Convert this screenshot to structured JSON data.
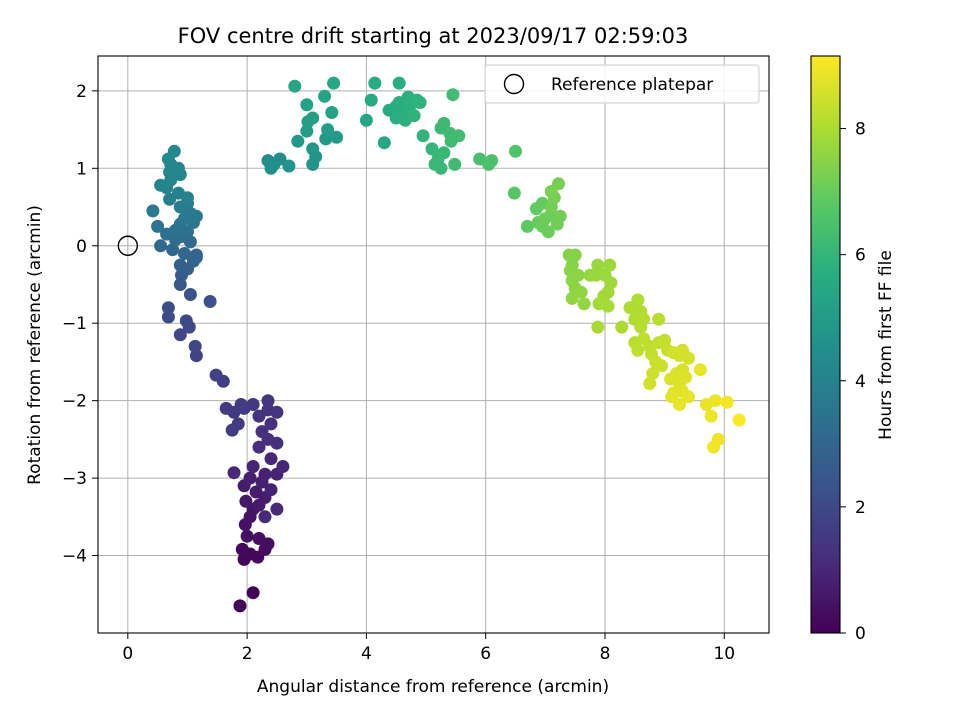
{
  "chart_data": {
    "type": "scatter",
    "title": "FOV centre drift starting at 2023/09/17 02:59:03",
    "xlabel": "Angular distance from reference (arcmin)",
    "ylabel": "Rotation from reference (arcmin)",
    "xlim": [
      -0.5,
      10.75
    ],
    "ylim": [
      -5.0,
      2.45
    ],
    "xticks": [
      "0",
      "2",
      "4",
      "6",
      "8",
      "10"
    ],
    "xtick_values": [
      0,
      2,
      4,
      6,
      8,
      10
    ],
    "yticks": [
      "2",
      "1",
      "0",
      "−1",
      "−2",
      "−3",
      "−4"
    ],
    "ytick_values": [
      2,
      1,
      0,
      -1,
      -2,
      -3,
      -4
    ],
    "grid": true,
    "legend": {
      "label": "Reference platepar",
      "location": "top-right",
      "marker": "open-circle"
    },
    "reference_point": {
      "x": 0,
      "y": 0
    },
    "colormap": "viridis",
    "colorbar": {
      "label": "Hours from first FF file",
      "range": [
        0,
        9.15
      ],
      "ticks": [
        "0",
        "2",
        "4",
        "6",
        "8"
      ],
      "tick_values": [
        0,
        2,
        4,
        6,
        8
      ]
    },
    "points": [
      {
        "x": 1.88,
        "y": -4.65,
        "t": 0.02
      },
      {
        "x": 2.1,
        "y": -4.48,
        "t": 0.05
      },
      {
        "x": 1.95,
        "y": -4.05,
        "t": 0.1
      },
      {
        "x": 2.05,
        "y": -3.98,
        "t": 0.15
      },
      {
        "x": 1.92,
        "y": -3.92,
        "t": 0.2
      },
      {
        "x": 2.18,
        "y": -4.02,
        "t": 0.22
      },
      {
        "x": 2.3,
        "y": -3.92,
        "t": 0.28
      },
      {
        "x": 2.35,
        "y": -3.85,
        "t": 0.32
      },
      {
        "x": 2.2,
        "y": -3.78,
        "t": 0.35
      },
      {
        "x": 2.0,
        "y": -3.75,
        "t": 0.4
      },
      {
        "x": 1.97,
        "y": -3.6,
        "t": 0.45
      },
      {
        "x": 2.05,
        "y": -3.5,
        "t": 0.5
      },
      {
        "x": 2.1,
        "y": -3.4,
        "t": 0.55
      },
      {
        "x": 1.98,
        "y": -3.3,
        "t": 0.6
      },
      {
        "x": 2.2,
        "y": -3.35,
        "t": 0.62
      },
      {
        "x": 2.3,
        "y": -3.25,
        "t": 0.68
      },
      {
        "x": 1.95,
        "y": -3.1,
        "t": 0.7
      },
      {
        "x": 2.15,
        "y": -3.18,
        "t": 0.72
      },
      {
        "x": 2.05,
        "y": -3.0,
        "t": 0.78
      },
      {
        "x": 2.25,
        "y": -3.05,
        "t": 0.8
      },
      {
        "x": 2.4,
        "y": -3.15,
        "t": 0.85
      },
      {
        "x": 2.3,
        "y": -2.95,
        "t": 0.88
      },
      {
        "x": 2.5,
        "y": -2.95,
        "t": 0.9
      },
      {
        "x": 2.1,
        "y": -2.85,
        "t": 0.95
      },
      {
        "x": 2.4,
        "y": -2.75,
        "t": 1.0
      },
      {
        "x": 2.6,
        "y": -2.85,
        "t": 1.02
      },
      {
        "x": 1.78,
        "y": -2.93,
        "t": 1.05
      },
      {
        "x": 2.5,
        "y": -3.4,
        "t": 1.08
      },
      {
        "x": 2.3,
        "y": -3.5,
        "t": 1.1
      },
      {
        "x": 2.2,
        "y": -2.6,
        "t": 1.15
      },
      {
        "x": 2.35,
        "y": -2.5,
        "t": 1.2
      },
      {
        "x": 2.5,
        "y": -2.55,
        "t": 1.22
      },
      {
        "x": 2.25,
        "y": -2.4,
        "t": 1.25
      },
      {
        "x": 2.4,
        "y": -2.3,
        "t": 1.28
      },
      {
        "x": 2.2,
        "y": -2.2,
        "t": 1.32
      },
      {
        "x": 2.35,
        "y": -2.12,
        "t": 1.35
      },
      {
        "x": 2.5,
        "y": -2.15,
        "t": 1.38
      },
      {
        "x": 2.35,
        "y": -2.0,
        "t": 1.42
      },
      {
        "x": 2.1,
        "y": -2.05,
        "t": 1.45
      },
      {
        "x": 1.95,
        "y": -2.1,
        "t": 1.5
      },
      {
        "x": 1.78,
        "y": -2.15,
        "t": 1.52
      },
      {
        "x": 1.65,
        "y": -2.1,
        "t": 1.55
      },
      {
        "x": 1.85,
        "y": -2.3,
        "t": 1.58
      },
      {
        "x": 1.75,
        "y": -2.38,
        "t": 1.6
      },
      {
        "x": 1.9,
        "y": -2.05,
        "t": 1.62
      },
      {
        "x": 1.6,
        "y": -1.75,
        "t": 1.7
      },
      {
        "x": 1.48,
        "y": -1.67,
        "t": 1.75
      },
      {
        "x": 1.15,
        "y": -1.42,
        "t": 1.82
      },
      {
        "x": 1.13,
        "y": -1.3,
        "t": 1.88
      },
      {
        "x": 0.88,
        "y": -1.15,
        "t": 1.95
      },
      {
        "x": 1.03,
        "y": -1.05,
        "t": 2.0
      },
      {
        "x": 0.98,
        "y": -0.97,
        "t": 2.05
      },
      {
        "x": 0.68,
        "y": -0.92,
        "t": 2.1
      },
      {
        "x": 0.68,
        "y": -0.8,
        "t": 2.15
      },
      {
        "x": 1.38,
        "y": -0.72,
        "t": 2.25
      },
      {
        "x": 1.05,
        "y": -0.63,
        "t": 2.35
      },
      {
        "x": 0.88,
        "y": -0.5,
        "t": 2.5
      },
      {
        "x": 0.9,
        "y": -0.38,
        "t": 2.6
      },
      {
        "x": 1.0,
        "y": -0.3,
        "t": 2.7
      },
      {
        "x": 0.88,
        "y": -0.25,
        "t": 2.8
      },
      {
        "x": 1.1,
        "y": -0.2,
        "t": 2.85
      },
      {
        "x": 1.15,
        "y": -0.12,
        "t": 2.9
      },
      {
        "x": 1.15,
        "y": -0.15,
        "t": 2.95
      },
      {
        "x": 0.95,
        "y": -0.1,
        "t": 3.0
      },
      {
        "x": 0.75,
        "y": -0.05,
        "t": 3.05
      },
      {
        "x": 0.55,
        "y": 0.0,
        "t": 3.1
      },
      {
        "x": 1.05,
        "y": 0.05,
        "t": 3.15
      },
      {
        "x": 0.8,
        "y": 0.08,
        "t": 3.2
      },
      {
        "x": 0.9,
        "y": 0.12,
        "t": 3.25
      },
      {
        "x": 0.65,
        "y": 0.15,
        "t": 3.3
      },
      {
        "x": 1.0,
        "y": 0.18,
        "t": 3.35
      },
      {
        "x": 0.8,
        "y": 0.2,
        "t": 3.4
      },
      {
        "x": 0.5,
        "y": 0.25,
        "t": 3.45
      },
      {
        "x": 0.88,
        "y": 0.28,
        "t": 3.5
      },
      {
        "x": 1.1,
        "y": 0.3,
        "t": 3.55
      },
      {
        "x": 0.95,
        "y": 0.35,
        "t": 3.6
      },
      {
        "x": 1.15,
        "y": 0.38,
        "t": 3.65
      },
      {
        "x": 1.05,
        "y": 0.42,
        "t": 3.7
      },
      {
        "x": 0.42,
        "y": 0.45,
        "t": 3.75
      },
      {
        "x": 0.88,
        "y": 0.5,
        "t": 3.8
      },
      {
        "x": 1.0,
        "y": 0.55,
        "t": 3.85
      },
      {
        "x": 0.7,
        "y": 0.6,
        "t": 3.9
      },
      {
        "x": 1.0,
        "y": 0.62,
        "t": 3.95
      },
      {
        "x": 0.85,
        "y": 0.68,
        "t": 4.0
      },
      {
        "x": 0.65,
        "y": 0.75,
        "t": 4.05
      },
      {
        "x": 0.55,
        "y": 0.78,
        "t": 4.08
      },
      {
        "x": 0.72,
        "y": 0.85,
        "t": 4.1
      },
      {
        "x": 0.88,
        "y": 0.92,
        "t": 4.12
      },
      {
        "x": 0.7,
        "y": 0.95,
        "t": 4.15
      },
      {
        "x": 0.85,
        "y": 1.0,
        "t": 4.18
      },
      {
        "x": 0.72,
        "y": 1.05,
        "t": 4.2
      },
      {
        "x": 0.68,
        "y": 1.12,
        "t": 4.22
      },
      {
        "x": 0.78,
        "y": 1.22,
        "t": 4.25
      },
      {
        "x": 2.35,
        "y": 1.1,
        "t": 4.4
      },
      {
        "x": 2.45,
        "y": 1.05,
        "t": 4.45
      },
      {
        "x": 2.55,
        "y": 1.12,
        "t": 4.5
      },
      {
        "x": 2.4,
        "y": 1.0,
        "t": 4.55
      },
      {
        "x": 2.7,
        "y": 1.03,
        "t": 4.6
      },
      {
        "x": 3.1,
        "y": 1.05,
        "t": 4.7
      },
      {
        "x": 3.15,
        "y": 1.15,
        "t": 4.75
      },
      {
        "x": 3.1,
        "y": 1.25,
        "t": 4.8
      },
      {
        "x": 2.85,
        "y": 1.35,
        "t": 4.85
      },
      {
        "x": 3.32,
        "y": 1.38,
        "t": 4.9
      },
      {
        "x": 3.5,
        "y": 1.4,
        "t": 4.95
      },
      {
        "x": 3.35,
        "y": 1.5,
        "t": 5.0
      },
      {
        "x": 3.0,
        "y": 1.48,
        "t": 5.05
      },
      {
        "x": 3.02,
        "y": 1.6,
        "t": 5.1
      },
      {
        "x": 3.1,
        "y": 1.65,
        "t": 5.15
      },
      {
        "x": 3.42,
        "y": 1.72,
        "t": 5.2
      },
      {
        "x": 3.0,
        "y": 1.82,
        "t": 5.25
      },
      {
        "x": 3.3,
        "y": 1.93,
        "t": 5.3
      },
      {
        "x": 2.8,
        "y": 2.06,
        "t": 5.35
      },
      {
        "x": 3.45,
        "y": 2.1,
        "t": 5.4
      },
      {
        "x": 4.0,
        "y": 1.62,
        "t": 5.45
      },
      {
        "x": 4.3,
        "y": 1.33,
        "t": 5.5
      },
      {
        "x": 4.08,
        "y": 1.88,
        "t": 5.55
      },
      {
        "x": 4.14,
        "y": 2.1,
        "t": 5.6
      },
      {
        "x": 4.38,
        "y": 1.75,
        "t": 5.62
      },
      {
        "x": 4.5,
        "y": 1.8,
        "t": 5.65
      },
      {
        "x": 4.55,
        "y": 2.1,
        "t": 5.68
      },
      {
        "x": 4.5,
        "y": 1.65,
        "t": 5.7
      },
      {
        "x": 4.6,
        "y": 1.72,
        "t": 5.72
      },
      {
        "x": 4.55,
        "y": 1.85,
        "t": 5.75
      },
      {
        "x": 4.65,
        "y": 1.62,
        "t": 5.78
      },
      {
        "x": 4.72,
        "y": 1.78,
        "t": 5.8
      },
      {
        "x": 4.7,
        "y": 1.92,
        "t": 5.82
      },
      {
        "x": 4.85,
        "y": 1.88,
        "t": 5.85
      },
      {
        "x": 4.9,
        "y": 1.85,
        "t": 5.88
      },
      {
        "x": 4.8,
        "y": 1.68,
        "t": 5.9
      },
      {
        "x": 4.95,
        "y": 1.42,
        "t": 5.95
      },
      {
        "x": 5.1,
        "y": 1.25,
        "t": 6.0
      },
      {
        "x": 5.2,
        "y": 1.12,
        "t": 6.05
      },
      {
        "x": 5.15,
        "y": 1.05,
        "t": 6.08
      },
      {
        "x": 5.25,
        "y": 1.0,
        "t": 6.1
      },
      {
        "x": 5.3,
        "y": 1.2,
        "t": 6.12
      },
      {
        "x": 5.25,
        "y": 1.52,
        "t": 6.15
      },
      {
        "x": 5.3,
        "y": 1.58,
        "t": 6.18
      },
      {
        "x": 5.4,
        "y": 1.45,
        "t": 6.2
      },
      {
        "x": 5.42,
        "y": 1.35,
        "t": 6.22
      },
      {
        "x": 5.48,
        "y": 1.05,
        "t": 6.25
      },
      {
        "x": 5.55,
        "y": 1.42,
        "t": 6.28
      },
      {
        "x": 5.45,
        "y": 1.95,
        "t": 6.3
      },
      {
        "x": 5.9,
        "y": 1.12,
        "t": 6.4
      },
      {
        "x": 6.05,
        "y": 1.05,
        "t": 6.45
      },
      {
        "x": 6.1,
        "y": 1.1,
        "t": 6.5
      },
      {
        "x": 6.5,
        "y": 1.22,
        "t": 6.55
      },
      {
        "x": 6.48,
        "y": 0.68,
        "t": 6.7
      },
      {
        "x": 6.7,
        "y": 0.25,
        "t": 6.8
      },
      {
        "x": 6.85,
        "y": 0.48,
        "t": 6.9
      },
      {
        "x": 6.95,
        "y": 0.55,
        "t": 6.95
      },
      {
        "x": 6.88,
        "y": 0.3,
        "t": 7.0
      },
      {
        "x": 6.95,
        "y": 0.25,
        "t": 7.02
      },
      {
        "x": 7.05,
        "y": 0.18,
        "t": 7.05
      },
      {
        "x": 7.0,
        "y": 0.35,
        "t": 7.08
      },
      {
        "x": 7.1,
        "y": 0.4,
        "t": 7.1
      },
      {
        "x": 7.2,
        "y": 0.28,
        "t": 7.12
      },
      {
        "x": 7.25,
        "y": 0.38,
        "t": 7.15
      },
      {
        "x": 7.1,
        "y": 0.5,
        "t": 7.18
      },
      {
        "x": 7.15,
        "y": 0.62,
        "t": 7.2
      },
      {
        "x": 7.22,
        "y": 0.8,
        "t": 7.22
      },
      {
        "x": 7.1,
        "y": 0.7,
        "t": 7.25
      },
      {
        "x": 7.4,
        "y": -0.12,
        "t": 7.4
      },
      {
        "x": 7.5,
        "y": -0.12,
        "t": 7.42
      },
      {
        "x": 7.45,
        "y": -0.25,
        "t": 7.45
      },
      {
        "x": 7.42,
        "y": -0.32,
        "t": 7.48
      },
      {
        "x": 7.55,
        "y": -0.38,
        "t": 7.5
      },
      {
        "x": 7.45,
        "y": -0.45,
        "t": 7.52
      },
      {
        "x": 7.5,
        "y": -0.55,
        "t": 7.55
      },
      {
        "x": 7.6,
        "y": -0.6,
        "t": 7.58
      },
      {
        "x": 7.45,
        "y": -0.68,
        "t": 7.6
      },
      {
        "x": 7.65,
        "y": -0.75,
        "t": 7.62
      },
      {
        "x": 7.75,
        "y": -0.38,
        "t": 7.65
      },
      {
        "x": 7.88,
        "y": -0.25,
        "t": 7.7
      },
      {
        "x": 7.85,
        "y": -0.38,
        "t": 7.72
      },
      {
        "x": 8.0,
        "y": -0.38,
        "t": 7.75
      },
      {
        "x": 8.08,
        "y": -0.25,
        "t": 7.78
      },
      {
        "x": 8.1,
        "y": -0.48,
        "t": 7.8
      },
      {
        "x": 8.05,
        "y": -0.6,
        "t": 7.82
      },
      {
        "x": 7.98,
        "y": -0.65,
        "t": 7.85
      },
      {
        "x": 7.9,
        "y": -0.75,
        "t": 7.88
      },
      {
        "x": 8.05,
        "y": -0.78,
        "t": 7.9
      },
      {
        "x": 7.88,
        "y": -1.05,
        "t": 7.92
      },
      {
        "x": 8.28,
        "y": -1.05,
        "t": 7.95
      },
      {
        "x": 8.42,
        "y": -0.8,
        "t": 8.0
      },
      {
        "x": 8.55,
        "y": -0.7,
        "t": 8.02
      },
      {
        "x": 8.6,
        "y": -0.85,
        "t": 8.05
      },
      {
        "x": 8.5,
        "y": -0.95,
        "t": 8.08
      },
      {
        "x": 8.65,
        "y": -0.95,
        "t": 8.1
      },
      {
        "x": 8.6,
        "y": -1.05,
        "t": 8.12
      },
      {
        "x": 8.9,
        "y": -0.95,
        "t": 8.15
      },
      {
        "x": 8.5,
        "y": -1.25,
        "t": 8.2
      },
      {
        "x": 8.55,
        "y": -1.35,
        "t": 8.22
      },
      {
        "x": 8.65,
        "y": -1.2,
        "t": 8.25
      },
      {
        "x": 8.75,
        "y": -1.3,
        "t": 8.28
      },
      {
        "x": 8.9,
        "y": -1.25,
        "t": 8.3
      },
      {
        "x": 8.78,
        "y": -1.4,
        "t": 8.32
      },
      {
        "x": 9.0,
        "y": -1.22,
        "t": 8.35
      },
      {
        "x": 9.05,
        "y": -1.35,
        "t": 8.38
      },
      {
        "x": 8.85,
        "y": -1.5,
        "t": 8.4
      },
      {
        "x": 8.95,
        "y": -1.55,
        "t": 8.42
      },
      {
        "x": 8.8,
        "y": -1.65,
        "t": 8.45
      },
      {
        "x": 8.75,
        "y": -1.78,
        "t": 8.48
      },
      {
        "x": 9.15,
        "y": -1.38,
        "t": 8.5
      },
      {
        "x": 9.25,
        "y": -1.42,
        "t": 8.52
      },
      {
        "x": 9.3,
        "y": -1.35,
        "t": 8.55
      },
      {
        "x": 9.4,
        "y": -1.45,
        "t": 8.58
      },
      {
        "x": 9.3,
        "y": -1.6,
        "t": 8.6
      },
      {
        "x": 9.2,
        "y": -1.65,
        "t": 8.62
      },
      {
        "x": 9.1,
        "y": -1.72,
        "t": 8.65
      },
      {
        "x": 9.25,
        "y": -1.78,
        "t": 8.68
      },
      {
        "x": 9.35,
        "y": -1.7,
        "t": 8.7
      },
      {
        "x": 9.15,
        "y": -1.9,
        "t": 8.72
      },
      {
        "x": 9.3,
        "y": -1.88,
        "t": 8.75
      },
      {
        "x": 9.12,
        "y": -1.95,
        "t": 8.78
      },
      {
        "x": 9.4,
        "y": -1.95,
        "t": 8.8
      },
      {
        "x": 9.25,
        "y": -2.05,
        "t": 8.82
      },
      {
        "x": 9.6,
        "y": -1.6,
        "t": 8.85
      },
      {
        "x": 9.7,
        "y": -2.05,
        "t": 8.88
      },
      {
        "x": 9.85,
        "y": -2.0,
        "t": 8.9
      },
      {
        "x": 9.78,
        "y": -2.2,
        "t": 8.92
      },
      {
        "x": 9.9,
        "y": -2.5,
        "t": 8.95
      },
      {
        "x": 9.82,
        "y": -2.6,
        "t": 8.98
      },
      {
        "x": 10.05,
        "y": -2.02,
        "t": 9.02
      },
      {
        "x": 10.25,
        "y": -2.25,
        "t": 9.1
      }
    ]
  }
}
